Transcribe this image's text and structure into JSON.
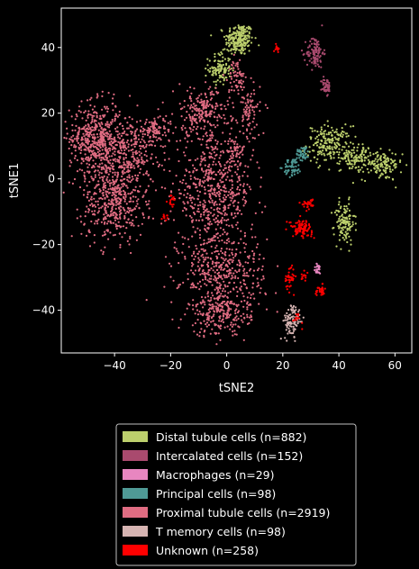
{
  "chart_data": {
    "type": "scatter",
    "xlabel": "tSNE2",
    "ylabel": "tSNE1",
    "xlim": [
      -59,
      66
    ],
    "ylim": [
      -53,
      52
    ],
    "xticks": [
      -40,
      -20,
      0,
      20,
      40,
      60
    ],
    "yticks": [
      -40,
      -20,
      0,
      20,
      40
    ],
    "grid": false,
    "legend_position": "below",
    "series": [
      {
        "name": "Distal tubule cells (n=882)",
        "color": "#bccf6c",
        "clusters": [
          {
            "cx": 4.5,
            "cy": 42.5,
            "sx": 2.5,
            "sy": 2.5,
            "n": 220
          },
          {
            "cx": -2.5,
            "cy": 33.5,
            "sx": 2.0,
            "sy": 2.5,
            "n": 110
          },
          {
            "cx": 36.5,
            "cy": 10.5,
            "sx": 4.0,
            "sy": 2.8,
            "n": 200
          },
          {
            "cx": 46.5,
            "cy": 6.5,
            "sx": 2.8,
            "sy": 2.0,
            "n": 110
          },
          {
            "cx": 55.5,
            "cy": 4.0,
            "sx": 3.5,
            "sy": 2.2,
            "n": 120
          },
          {
            "cx": 42.0,
            "cy": -13.5,
            "sx": 1.8,
            "sy": 3.2,
            "n": 122
          }
        ]
      },
      {
        "name": "Intercalated cells (n=152)",
        "color": "#a94a6e",
        "clusters": [
          {
            "cx": 31.5,
            "cy": 38.5,
            "sx": 1.5,
            "sy": 2.4,
            "n": 105
          },
          {
            "cx": 35.5,
            "cy": 28.0,
            "sx": 0.8,
            "sy": 1.5,
            "n": 47
          }
        ]
      },
      {
        "name": "Macrophages (n=29)",
        "color": "#e886c0",
        "clusters": [
          {
            "cx": 32.5,
            "cy": -27.5,
            "sx": 0.7,
            "sy": 0.8,
            "n": 29
          }
        ]
      },
      {
        "name": "Principal cells (n=98)",
        "color": "#4f9a96",
        "clusters": [
          {
            "cx": 23.5,
            "cy": 3.5,
            "sx": 1.6,
            "sy": 1.4,
            "n": 58
          },
          {
            "cx": 27.0,
            "cy": 8.0,
            "sx": 1.2,
            "sy": 1.2,
            "n": 40
          }
        ]
      },
      {
        "name": "Proximal tubule cells (n=2919)",
        "color": "#e06c82",
        "clusters": [
          {
            "cx": -47.0,
            "cy": 12.0,
            "sx": 4.5,
            "sy": 5.5,
            "n": 470
          },
          {
            "cx": -35.0,
            "cy": 8.0,
            "sx": 5.0,
            "sy": 6.0,
            "n": 320
          },
          {
            "cx": -40.5,
            "cy": -7.0,
            "sx": 5.5,
            "sy": 6.0,
            "n": 420
          },
          {
            "cx": -25.0,
            "cy": 15.0,
            "sx": 4.0,
            "sy": 2.0,
            "n": 90
          },
          {
            "cx": -9.0,
            "cy": 20.5,
            "sx": 5.0,
            "sy": 3.5,
            "n": 220
          },
          {
            "cx": -4.5,
            "cy": -4.0,
            "sx": 7.0,
            "sy": 8.5,
            "n": 600
          },
          {
            "cx": -1.5,
            "cy": -28.0,
            "sx": 7.5,
            "sy": 6.0,
            "n": 380
          },
          {
            "cx": -2.5,
            "cy": -41.0,
            "sx": 5.5,
            "sy": 3.5,
            "n": 230
          },
          {
            "cx": 8.0,
            "cy": 20.0,
            "sx": 2.0,
            "sy": 4.5,
            "n": 90
          },
          {
            "cx": 3.5,
            "cy": 31.0,
            "sx": 1.5,
            "sy": 2.5,
            "n": 60
          },
          {
            "cx": 3.0,
            "cy": 8.5,
            "sx": 2.0,
            "sy": 2.0,
            "n": 39
          }
        ]
      },
      {
        "name": "T memory cells (n=98)",
        "color": "#d6b4b2",
        "clusters": [
          {
            "cx": 23.5,
            "cy": -43.5,
            "sx": 1.6,
            "sy": 2.6,
            "n": 98
          }
        ]
      },
      {
        "name": "Unknown (n=258)",
        "color": "#ff0000",
        "clusters": [
          {
            "cx": 26.5,
            "cy": -15.0,
            "sx": 2.0,
            "sy": 1.2,
            "n": 95
          },
          {
            "cx": 33.5,
            "cy": -34.0,
            "sx": 0.9,
            "sy": 0.8,
            "n": 30
          },
          {
            "cx": 22.5,
            "cy": -30.0,
            "sx": 0.9,
            "sy": 1.8,
            "n": 36
          },
          {
            "cx": 29.5,
            "cy": -7.5,
            "sx": 1.2,
            "sy": 0.8,
            "n": 30
          },
          {
            "cx": 18.0,
            "cy": 40.0,
            "sx": 0.5,
            "sy": 0.8,
            "n": 15
          },
          {
            "cx": -19.5,
            "cy": -6.5,
            "sx": 0.8,
            "sy": 1.0,
            "n": 18
          },
          {
            "cx": -22.0,
            "cy": -11.5,
            "sx": 0.6,
            "sy": 0.4,
            "n": 10
          },
          {
            "cx": 27.5,
            "cy": -29.5,
            "sx": 0.6,
            "sy": 0.6,
            "n": 12
          },
          {
            "cx": 25.0,
            "cy": -43.0,
            "sx": 1.0,
            "sy": 1.0,
            "n": 12
          }
        ]
      }
    ]
  }
}
